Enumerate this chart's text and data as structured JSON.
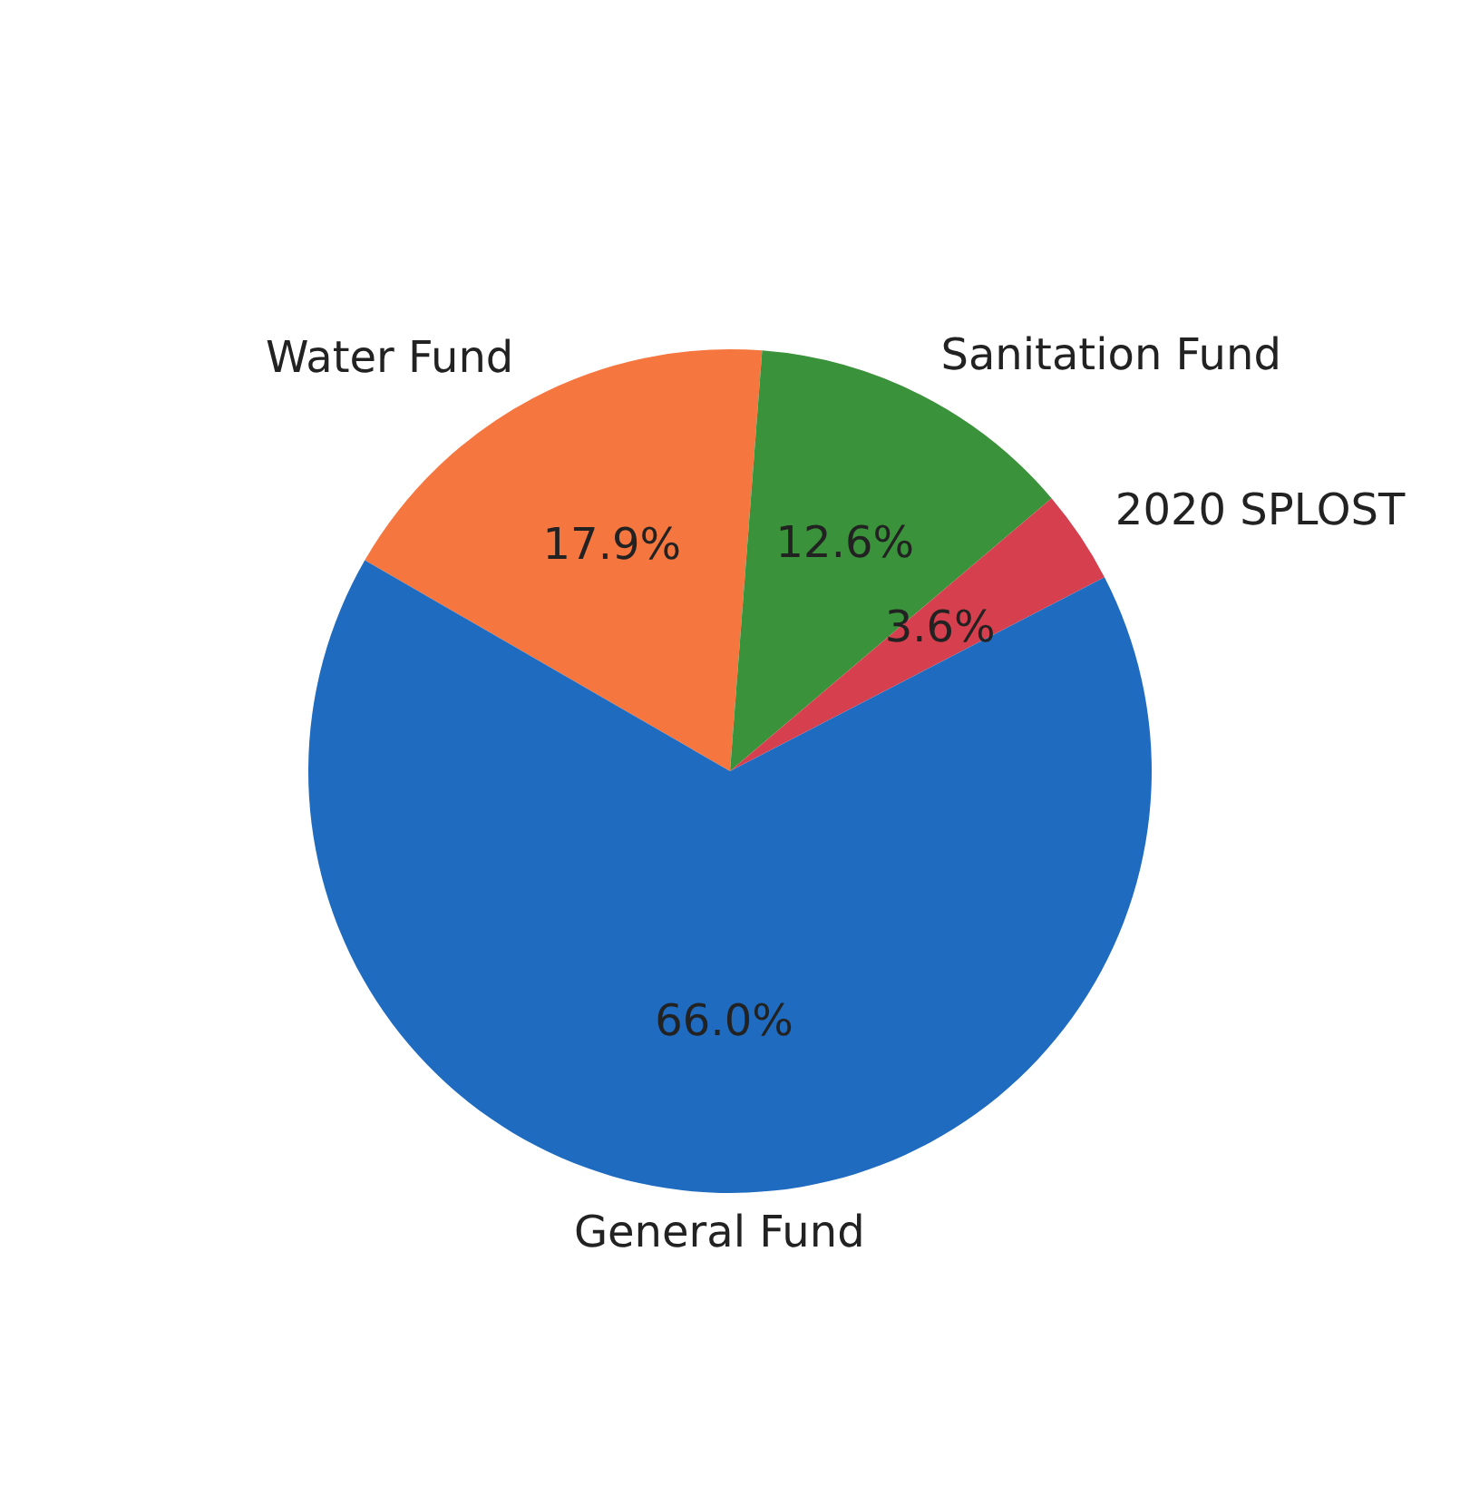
{
  "chart_data": {
    "type": "pie",
    "categories": [
      "Water Fund",
      "Sanitation Fund",
      "2020 SPLOST",
      "General Fund"
    ],
    "values": [
      17.9,
      12.6,
      3.6,
      66.0
    ],
    "colors": [
      "#f5773f",
      "#3a923a",
      "#d6404e",
      "#1f6bbf"
    ],
    "value_labels": [
      "17.9%",
      "12.6%",
      "3.6%",
      "66.0%"
    ],
    "legend": false
  }
}
